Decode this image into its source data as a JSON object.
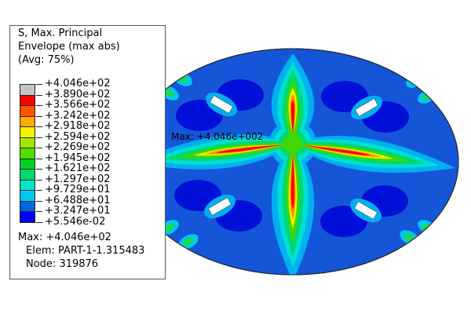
{
  "legend": {
    "title_lines": [
      "S, Max. Principal",
      "Envelope (max abs)",
      "(Avg: 75%)"
    ],
    "labels": [
      "+4.046e+02",
      "+3.890e+02",
      "+3.566e+02",
      "+3.242e+02",
      "+2.918e+02",
      "+2.594e+02",
      "+2.269e+02",
      "+1.945e+02",
      "+1.621e+02",
      "+1.297e+02",
      "+9.729e+01",
      "+6.488e+01",
      "+3.247e+01",
      "+5.546e-02"
    ],
    "band_colors": [
      "#c4c4c4",
      "#ff0000",
      "#ff5500",
      "#ffaa00",
      "#f2f200",
      "#a6e600",
      "#4fe000",
      "#00d024",
      "#00d870",
      "#00e6c8",
      "#00c8f0",
      "#0064e6",
      "#0000f0"
    ],
    "max": "Max: +4.046e+02",
    "elem": "Elem: PART-1-1.315483",
    "node": "Node: 319876"
  },
  "annotation": "Max: +4.046e+002"
}
